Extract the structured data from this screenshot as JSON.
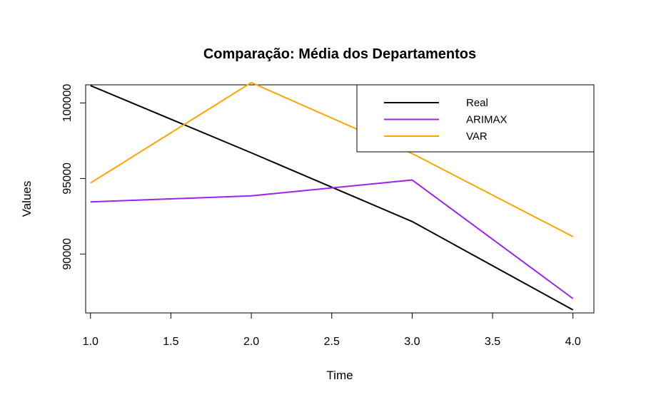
{
  "chart_data": {
    "type": "line",
    "title": "Comparação: Média dos Departamentos",
    "xlabel": "Time",
    "ylabel": "Values",
    "x": [
      1,
      2,
      3,
      4
    ],
    "xlim": [
      0.97,
      4.13
    ],
    "ylim": [
      86100,
      101200
    ],
    "xticks": [
      "1.0",
      "1.5",
      "2.0",
      "2.5",
      "3.0",
      "3.5",
      "4.0"
    ],
    "yticks": [
      "90000",
      "95000",
      "100000"
    ],
    "grid": false,
    "legend_position": "top-right",
    "series": [
      {
        "name": "Real",
        "color": "#000000",
        "values": [
          101150,
          96700,
          92150,
          86300
        ]
      },
      {
        "name": "ARIMAX",
        "color": "#A020F0",
        "values": [
          93450,
          93850,
          94900,
          87050
        ]
      },
      {
        "name": "VAR",
        "color": "#FFA500",
        "values": [
          94700,
          101350,
          96650,
          91150
        ]
      }
    ]
  }
}
